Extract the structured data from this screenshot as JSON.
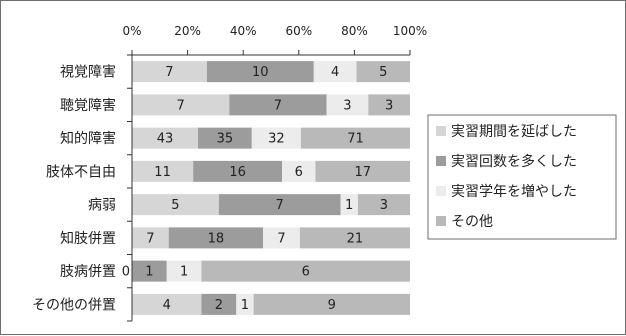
{
  "chart_data": {
    "type": "bar",
    "orientation": "horizontal",
    "stacked": "percent",
    "xlim": [
      0,
      100
    ],
    "x_ticks": [
      "0%",
      "20%",
      "40%",
      "60%",
      "80%",
      "100%"
    ],
    "x_tick_values": [
      0,
      20,
      40,
      60,
      80,
      100
    ],
    "categories": [
      "視覚障害",
      "聴覚障害",
      "知的障害",
      "肢体不自由",
      "病弱",
      "知肢併置",
      "肢病併置",
      "その他の併置"
    ],
    "series": [
      {
        "name": "実習期間を延ばした",
        "color": "#d6d6d6",
        "values": [
          7,
          7,
          43,
          11,
          5,
          7,
          0,
          4
        ]
      },
      {
        "name": "実習回数を多くした",
        "color": "#9c9c9c",
        "values": [
          10,
          7,
          35,
          16,
          7,
          18,
          1,
          2
        ]
      },
      {
        "name": "実習学年を増やした",
        "color": "#ececec",
        "values": [
          4,
          3,
          32,
          6,
          1,
          7,
          1,
          1
        ]
      },
      {
        "name": "その他",
        "color": "#b9b9b9",
        "values": [
          5,
          3,
          71,
          17,
          3,
          21,
          6,
          9
        ]
      }
    ],
    "legend_position": "right",
    "grid": false
  }
}
